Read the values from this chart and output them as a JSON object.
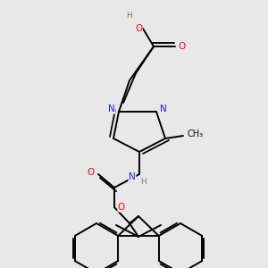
{
  "bg_color": "#e8e8e8",
  "atom_colors": {
    "C": "#000000",
    "N": "#1a1aff",
    "O": "#ff0000",
    "H": "#708090"
  },
  "bond_color": "#000000",
  "bond_width": 1.4,
  "font_size_atoms": 7.5
}
